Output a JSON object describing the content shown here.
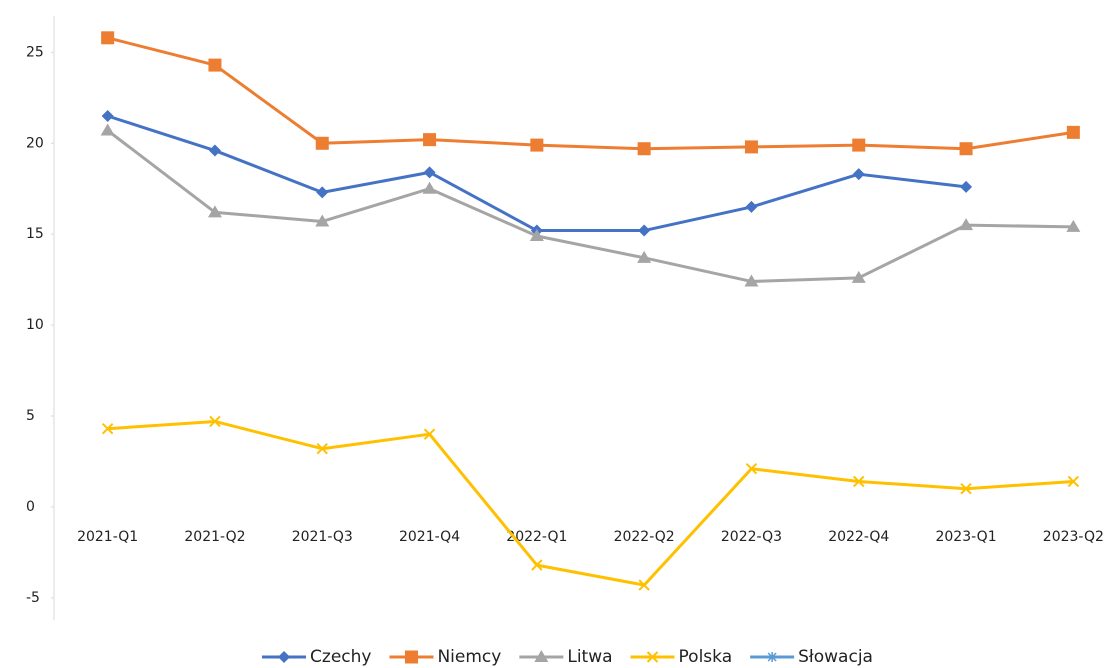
{
  "chart_data": {
    "type": "line",
    "categories": [
      "2021-Q1",
      "2021-Q2",
      "2021-Q3",
      "2021-Q4",
      "2022-Q1",
      "2022-Q2",
      "2022-Q3",
      "2022-Q4",
      "2023-Q1",
      "2023-Q2"
    ],
    "series": [
      {
        "name": "Czechy",
        "color": "#4472c4",
        "marker": "diamond",
        "values": [
          21.5,
          19.6,
          17.3,
          18.4,
          15.2,
          15.2,
          16.5,
          18.3,
          17.6,
          null
        ]
      },
      {
        "name": "Niemcy",
        "color": "#ed7d31",
        "marker": "square",
        "values": [
          25.8,
          24.3,
          20.0,
          20.2,
          19.9,
          19.7,
          19.8,
          19.9,
          19.7,
          20.6
        ]
      },
      {
        "name": "Litwa",
        "color": "#a5a5a5",
        "marker": "triangle",
        "values": [
          20.7,
          16.2,
          15.7,
          17.5,
          14.9,
          13.7,
          12.4,
          12.6,
          15.5,
          15.4
        ]
      },
      {
        "name": "Polska",
        "color": "#ffc000",
        "marker": "x",
        "values": [
          4.3,
          4.7,
          3.2,
          4.0,
          -3.2,
          -4.3,
          2.1,
          1.4,
          1.0,
          1.4
        ]
      },
      {
        "name": "Słowacja",
        "color": "#5b9bd5",
        "marker": "star",
        "values": [
          null,
          null,
          null,
          null,
          null,
          null,
          null,
          null,
          null,
          null
        ]
      }
    ],
    "ylim": [
      -6,
      27
    ],
    "yticks": [
      -5,
      0,
      5,
      10,
      15,
      20,
      25
    ],
    "legend": "bottom"
  }
}
